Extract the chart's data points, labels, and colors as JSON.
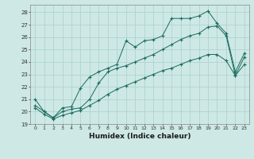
{
  "background_color": "#cde8e5",
  "grid_color": "#aed4d0",
  "line_color": "#1a6b5e",
  "xlabel": "Humidex (Indice chaleur)",
  "xlim": [
    -0.5,
    23.5
  ],
  "ylim": [
    19,
    28.6
  ],
  "yticks": [
    19,
    20,
    21,
    22,
    23,
    24,
    25,
    26,
    27,
    28
  ],
  "xticks": [
    0,
    1,
    2,
    3,
    4,
    5,
    6,
    7,
    8,
    9,
    10,
    11,
    12,
    13,
    14,
    15,
    16,
    17,
    18,
    19,
    20,
    21,
    22,
    23
  ],
  "series1_x": [
    0,
    1,
    2,
    3,
    4,
    5,
    6,
    7,
    8,
    9,
    10,
    11,
    12,
    13,
    14,
    15,
    16,
    17,
    18,
    19,
    20,
    21,
    22,
    23
  ],
  "series1_y": [
    21.0,
    20.0,
    19.5,
    20.3,
    20.4,
    21.9,
    22.8,
    23.2,
    23.5,
    23.8,
    25.7,
    25.2,
    25.7,
    25.8,
    26.1,
    27.5,
    27.5,
    27.5,
    27.7,
    28.1,
    27.1,
    26.3,
    23.2,
    24.7
  ],
  "series2_x": [
    0,
    1,
    2,
    3,
    4,
    5,
    6,
    7,
    8,
    9,
    10,
    11,
    12,
    13,
    14,
    15,
    16,
    17,
    18,
    19,
    20,
    21,
    22,
    23
  ],
  "series2_y": [
    20.5,
    20.0,
    19.5,
    20.0,
    20.2,
    20.3,
    21.0,
    22.3,
    23.2,
    23.5,
    23.7,
    24.0,
    24.3,
    24.6,
    25.0,
    25.4,
    25.8,
    26.1,
    26.3,
    26.8,
    26.9,
    26.1,
    22.9,
    24.4
  ],
  "series3_x": [
    0,
    1,
    2,
    3,
    4,
    5,
    6,
    7,
    8,
    9,
    10,
    11,
    12,
    13,
    14,
    15,
    16,
    17,
    18,
    19,
    20,
    21,
    22,
    23
  ],
  "series3_y": [
    20.3,
    19.8,
    19.4,
    19.7,
    19.9,
    20.1,
    20.5,
    20.9,
    21.4,
    21.8,
    22.1,
    22.4,
    22.7,
    23.0,
    23.3,
    23.5,
    23.8,
    24.1,
    24.3,
    24.6,
    24.6,
    24.1,
    22.9,
    23.8
  ]
}
